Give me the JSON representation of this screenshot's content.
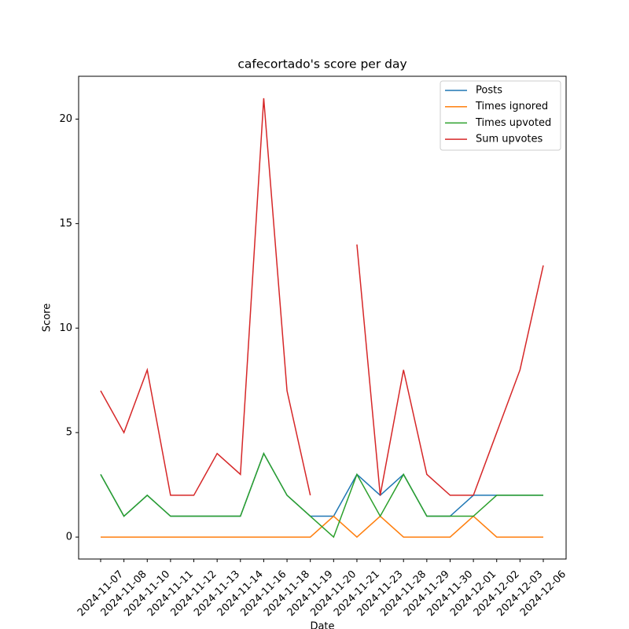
{
  "chart_data": {
    "type": "line",
    "title": "cafecortado's score per day",
    "x_label": "Date",
    "y_label": "Score",
    "categories": [
      "2024-11-07",
      "2024-11-08",
      "2024-11-10",
      "2024-11-11",
      "2024-11-12",
      "2024-11-13",
      "2024-11-14",
      "2024-11-16",
      "2024-11-18",
      "2024-11-19",
      "2024-11-20",
      "2024-11-21",
      "2024-11-23",
      "2024-11-28",
      "2024-11-29",
      "2024-11-30",
      "2024-12-01",
      "2024-12-02",
      "2024-12-03",
      "2024-12-06"
    ],
    "series": [
      {
        "name": "Posts",
        "color": "#1f77b4",
        "values": [
          3,
          1,
          2,
          1,
          1,
          1,
          1,
          4,
          2,
          1,
          1,
          3,
          2,
          3,
          1,
          1,
          2,
          2,
          2,
          2
        ]
      },
      {
        "name": "Times ignored",
        "color": "#ff7f0e",
        "values": [
          0,
          0,
          0,
          0,
          0,
          0,
          0,
          0,
          0,
          0,
          1,
          0,
          1,
          0,
          0,
          0,
          1,
          0,
          0,
          0
        ]
      },
      {
        "name": "Times upvoted",
        "color": "#2ca02c",
        "values": [
          3,
          1,
          2,
          1,
          1,
          1,
          1,
          4,
          2,
          1,
          0,
          3,
          1,
          3,
          1,
          1,
          1,
          2,
          2,
          2
        ]
      },
      {
        "name": "Sum upvotes",
        "color": "#d62728",
        "values": [
          7,
          5,
          8,
          2,
          2,
          4,
          3,
          21,
          7,
          2,
          null,
          14,
          2,
          8,
          3,
          2,
          2,
          5,
          8,
          13
        ]
      }
    ],
    "ylim": [
      -1.05,
      22.05
    ],
    "yticks": [
      0,
      5,
      10,
      15,
      20
    ],
    "legend": "upper right",
    "grid": false
  }
}
